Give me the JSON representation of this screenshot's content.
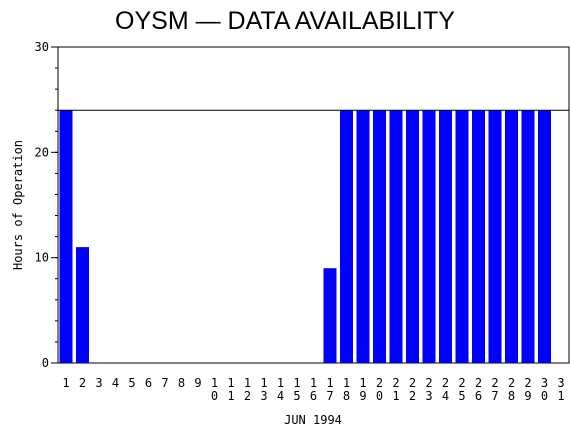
{
  "chart_data": {
    "type": "bar",
    "title": "OYSM - DATA AVAILABILITY",
    "xlabel": "JUN 1994",
    "ylabel": "Hours of Operation",
    "ylim": [
      0,
      30
    ],
    "yticks": [
      "0",
      "10",
      "20",
      "30"
    ],
    "reference_line": 24,
    "grid": false,
    "colors": {
      "bar": "#0000ff",
      "axis": "#000000",
      "background": "#ffffff"
    },
    "categories": [
      "1",
      "2",
      "3",
      "4",
      "5",
      "6",
      "7",
      "8",
      "9",
      "10",
      "11",
      "12",
      "13",
      "14",
      "15",
      "16",
      "17",
      "18",
      "19",
      "20",
      "21",
      "22",
      "23",
      "24",
      "25",
      "26",
      "27",
      "28",
      "29",
      "30",
      "31"
    ],
    "values": [
      24,
      11,
      0,
      0,
      0,
      0,
      0,
      0,
      0,
      0,
      0,
      0,
      0,
      0,
      0,
      0,
      9,
      24,
      24,
      24,
      24,
      24,
      24,
      24,
      24,
      24,
      24,
      24,
      24,
      24,
      0
    ]
  }
}
